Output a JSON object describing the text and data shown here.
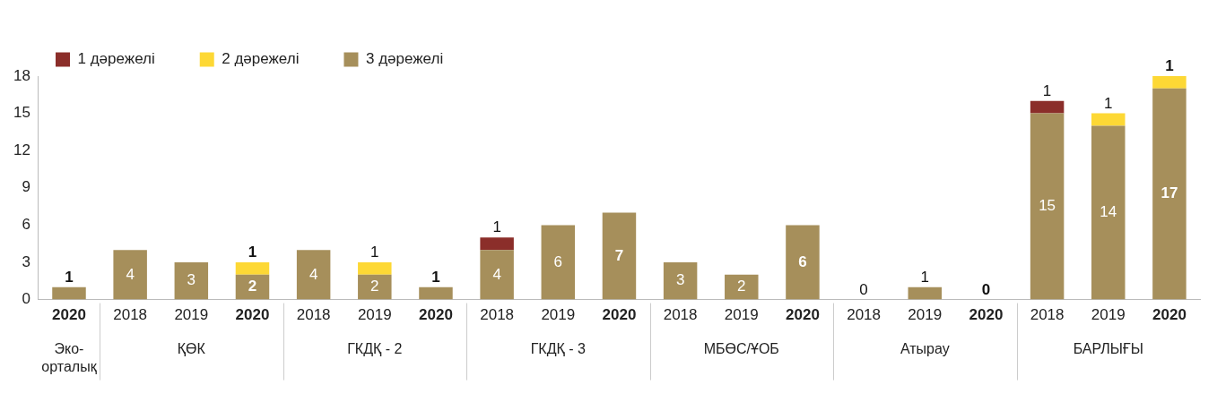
{
  "chart_data": {
    "type": "bar",
    "stacked": true,
    "categories": [
      "2020",
      "2018",
      "2019",
      "2020",
      "2018",
      "2019",
      "2020",
      "2018",
      "2019",
      "2020",
      "2018",
      "2019",
      "2020",
      "2018",
      "2019",
      "2020",
      "2018",
      "2019",
      "2020"
    ],
    "annotations": [
      "Эко-орталық",
      "ҚӨК",
      "ГКДҚ - 2",
      "ГКДҚ - 3",
      "МБӨС/ҰОБ",
      "Атырау",
      "БАРЛЫҒЫ"
    ],
    "series": [
      {
        "name": "3 дәрежелі",
        "color": "#a68f5b",
        "values": [
          1,
          4,
          3,
          2,
          4,
          2,
          1,
          4,
          6,
          7,
          3,
          2,
          6,
          0,
          1,
          0,
          15,
          14,
          17
        ]
      },
      {
        "name": "1 дәрежелі",
        "color": "#8b2e2a",
        "values": [
          null,
          null,
          null,
          null,
          null,
          null,
          null,
          1,
          null,
          null,
          null,
          null,
          null,
          null,
          null,
          null,
          1,
          null,
          null
        ]
      },
      {
        "name": "2 дәрежелі",
        "color": "#fdd835",
        "values": [
          null,
          null,
          null,
          1,
          null,
          1,
          null,
          null,
          null,
          null,
          null,
          null,
          null,
          null,
          null,
          null,
          null,
          1,
          1
        ]
      }
    ],
    "ylim": [
      0,
      18
    ],
    "yticks": [
      0,
      3,
      6,
      9,
      12,
      15,
      18
    ],
    "grid": false,
    "legend": "top left",
    "data_labels": true
  }
}
